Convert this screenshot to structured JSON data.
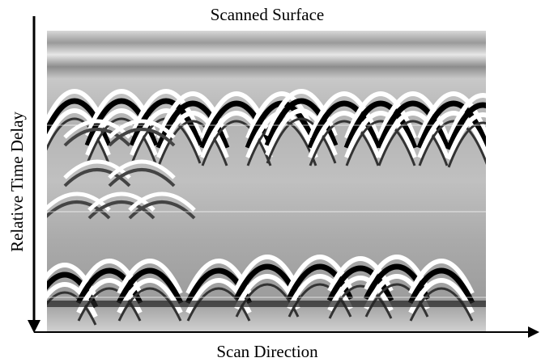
{
  "title": "Scanned Surface",
  "y_axis_label": "Relative Time Delay",
  "x_axis_label": "Scan Direction"
}
